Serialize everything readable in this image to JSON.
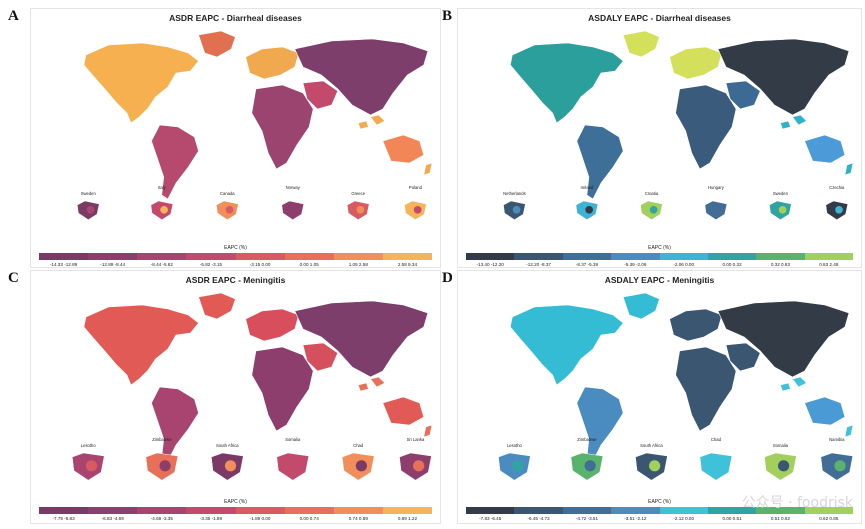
{
  "panels": [
    {
      "letter": "A",
      "title": "ASDR EAPC - Diarrheal diseases",
      "insets": [
        "Sweden",
        "Italy",
        "Canada",
        "Norway",
        "Greece",
        "Poland"
      ],
      "legend_title": "EAPC (%)",
      "legend_bins": [
        "-14.33 -12.89",
        "-12.89 -8.44",
        "-8.44 -5.82",
        "-5.82 -3.15",
        "-3.15 0.00",
        "0.00 1.05",
        "1.05 2.58",
        "2.58 9.34"
      ],
      "legend_colors": [
        "#7b3a66",
        "#8d3e6d",
        "#a8446f",
        "#c24a6c",
        "#d85a62",
        "#e87058",
        "#f28e5a",
        "#f7b35a"
      ],
      "region_colors": {
        "north_america": "#f6b04f",
        "greenland": "#e0704f",
        "south_america": "#b64a6e",
        "europe": "#f0a94f",
        "africa": "#9c4470",
        "asia": "#7e3e6b",
        "middle_east": "#c24a6c",
        "oceania": "#f28656",
        "islands": "#f3a94e"
      }
    },
    {
      "letter": "B",
      "title": "ASDALY EAPC - Diarrheal diseases",
      "insets": [
        "Netherlands",
        "Ireland",
        "Croatia",
        "Hungary",
        "Sweden",
        "Czechia"
      ],
      "legend_title": "EAPC (%)",
      "legend_bins": [
        "-13.40 -12.20",
        "-12.20 -8.37",
        "-8.37 -5.39",
        "-5.39 -2.06",
        "-2.06 0.00",
        "0.00 0.32",
        "0.32 0.83",
        "0.83 2.48"
      ],
      "legend_colors": [
        "#323b47",
        "#3b5670",
        "#416d96",
        "#4a8cc0",
        "#3fb3d3",
        "#32a3a3",
        "#5ab36c",
        "#a3cf5c"
      ],
      "region_colors": {
        "north_america": "#2b9f9c",
        "greenland": "#d3e05a",
        "south_america": "#3d6f99",
        "europe": "#d4df5b",
        "africa": "#3b5b7d",
        "asia": "#333b46",
        "middle_east": "#3c6a94",
        "oceania": "#4c9ad8",
        "islands": "#2fb2c9"
      }
    },
    {
      "letter": "C",
      "title": "ASDR EAPC - Meningitis",
      "insets": [
        "Lesotho",
        "Zimbabwe",
        "South Africa",
        "Somalia",
        "Chad",
        "Sri Lanka"
      ],
      "legend_title": "EAPC (%)",
      "legend_bins": [
        "-7.79 -6.83",
        "-6.83 -4.69",
        "-4.69 -3.35",
        "-3.35 -1.89",
        "-1.89 0.00",
        "0.00 0.74",
        "0.74 0.89",
        "0.89 1.22"
      ],
      "legend_colors": [
        "#7b3a66",
        "#8d3e6d",
        "#a8446f",
        "#c24a6c",
        "#d85a62",
        "#e87058",
        "#f28e5a",
        "#f7b35a"
      ],
      "region_colors": {
        "north_america": "#e25a55",
        "greenland": "#e25a55",
        "south_america": "#a8446f",
        "europe": "#d94e5d",
        "africa": "#8d3e6d",
        "asia": "#7e3e6b",
        "middle_east": "#d4505f",
        "oceania": "#e25a55",
        "islands": "#e8705a"
      }
    },
    {
      "letter": "D",
      "title": "ASDALY EAPC - Meningitis",
      "insets": [
        "Lesotho",
        "Zimbabwe",
        "South Africa",
        "Chad",
        "Somalia",
        "Namibia"
      ],
      "legend_title": "EAPC (%)",
      "legend_bins": [
        "-7.83 -6.45",
        "-6.45 -4.72",
        "-4.72 -3.51",
        "-3.51 -2.12",
        "-2.12 0.00",
        "0.00 0.51",
        "0.51 0.62",
        "0.62 0.85"
      ],
      "legend_colors": [
        "#323b47",
        "#3b5670",
        "#416d96",
        "#4a8cc0",
        "#3fc2d9",
        "#32a3a3",
        "#5ab36c",
        "#a3cf5c"
      ],
      "region_colors": {
        "north_america": "#33bcd4",
        "greenland": "#33bcd4",
        "south_america": "#4a8cc0",
        "europe": "#3b5670",
        "africa": "#3b5670",
        "asia": "#333b46",
        "middle_east": "#3b5670",
        "oceania": "#4a9ad6",
        "islands": "#3fc2d9"
      }
    }
  ],
  "watermark": "公众号 · foodrisk"
}
